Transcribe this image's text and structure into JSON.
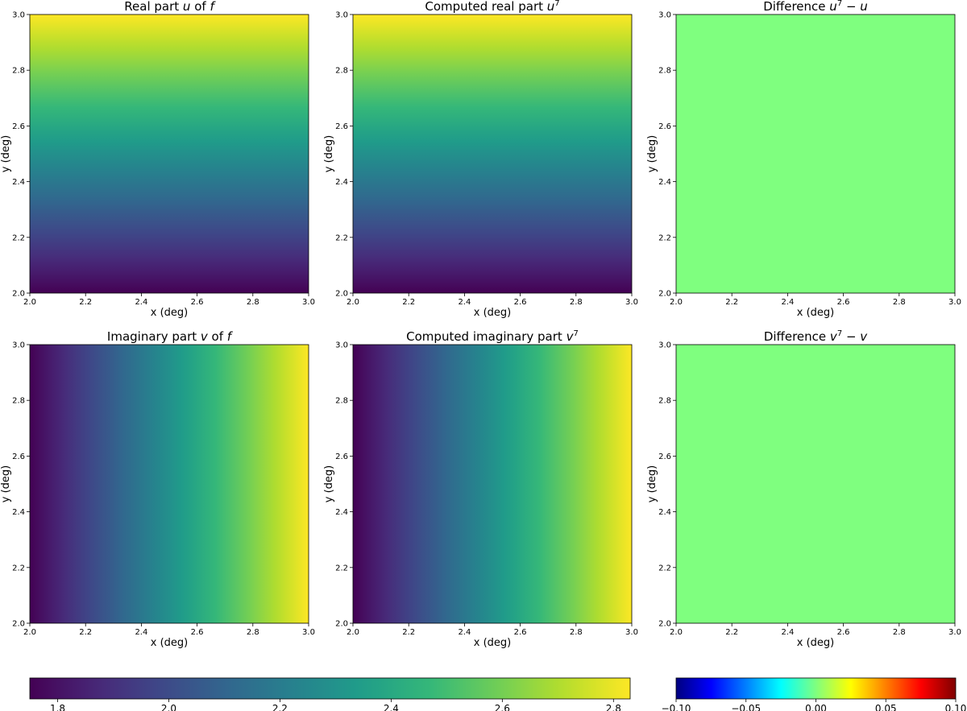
{
  "chart_data": [
    {
      "type": "heatmap",
      "title": "Real part u of f",
      "title_parts": [
        "Real part ",
        "u",
        " of ",
        "f"
      ],
      "xlabel": "x (deg)",
      "ylabel": "y (deg)",
      "xlim": [
        2.0,
        3.0
      ],
      "ylim": [
        2.0,
        3.0
      ],
      "xticks": [
        "2.0",
        "2.2",
        "2.4",
        "2.6",
        "2.8",
        "3.0"
      ],
      "yticks": [
        "2.0",
        "2.2",
        "2.4",
        "2.6",
        "2.8",
        "3.0"
      ],
      "colormap": "viridis",
      "clim": [
        1.75,
        2.83
      ],
      "gradient": "vertical",
      "value_range": [
        1.75,
        2.83
      ]
    },
    {
      "type": "heatmap",
      "title": "Computed real part u^7",
      "title_parts": [
        "Computed real part ",
        "u",
        "7"
      ],
      "xlabel": "x (deg)",
      "ylabel": "y (deg)",
      "xlim": [
        2.0,
        3.0
      ],
      "ylim": [
        2.0,
        3.0
      ],
      "xticks": [
        "2.0",
        "2.2",
        "2.4",
        "2.6",
        "2.8",
        "3.0"
      ],
      "yticks": [
        "2.0",
        "2.2",
        "2.4",
        "2.6",
        "2.8",
        "3.0"
      ],
      "colormap": "viridis",
      "clim": [
        1.75,
        2.83
      ],
      "gradient": "vertical",
      "value_range": [
        1.75,
        2.83
      ]
    },
    {
      "type": "heatmap",
      "title": "Difference u^7 − u",
      "title_parts": [
        "Difference ",
        "u",
        "7",
        " − ",
        "u"
      ],
      "xlabel": "x (deg)",
      "ylabel": "y (deg)",
      "xlim": [
        2.0,
        3.0
      ],
      "ylim": [
        2.0,
        3.0
      ],
      "xticks": [
        "2.0",
        "2.2",
        "2.4",
        "2.6",
        "2.8",
        "3.0"
      ],
      "yticks": [
        "2.0",
        "2.2",
        "2.4",
        "2.6",
        "2.8",
        "3.0"
      ],
      "colormap": "jet",
      "clim": [
        -0.1,
        0.1
      ],
      "gradient": "uniform",
      "value_range": [
        0.0,
        0.0
      ]
    },
    {
      "type": "heatmap",
      "title": "Imaginary part v of f",
      "title_parts": [
        "Imaginary part ",
        "v",
        " of ",
        "f"
      ],
      "xlabel": "x (deg)",
      "ylabel": "y (deg)",
      "xlim": [
        2.0,
        3.0
      ],
      "ylim": [
        2.0,
        3.0
      ],
      "xticks": [
        "2.0",
        "2.2",
        "2.4",
        "2.6",
        "2.8",
        "3.0"
      ],
      "yticks": [
        "2.0",
        "2.2",
        "2.4",
        "2.6",
        "2.8",
        "3.0"
      ],
      "colormap": "viridis",
      "clim": [
        1.75,
        2.83
      ],
      "gradient": "horizontal",
      "value_range": [
        1.75,
        2.83
      ]
    },
    {
      "type": "heatmap",
      "title": "Computed imaginary part v^7",
      "title_parts": [
        "Computed imaginary part ",
        "v",
        "7"
      ],
      "xlabel": "x (deg)",
      "ylabel": "y (deg)",
      "xlim": [
        2.0,
        3.0
      ],
      "ylim": [
        2.0,
        3.0
      ],
      "xticks": [
        "2.0",
        "2.2",
        "2.4",
        "2.6",
        "2.8",
        "3.0"
      ],
      "yticks": [
        "2.0",
        "2.2",
        "2.4",
        "2.6",
        "2.8",
        "3.0"
      ],
      "colormap": "viridis",
      "clim": [
        1.75,
        2.83
      ],
      "gradient": "horizontal",
      "value_range": [
        1.75,
        2.83
      ]
    },
    {
      "type": "heatmap",
      "title": "Difference v^7 − v",
      "title_parts": [
        "Difference ",
        "v",
        "7",
        " − ",
        "v"
      ],
      "xlabel": "x (deg)",
      "ylabel": "y (deg)",
      "xlim": [
        2.0,
        3.0
      ],
      "ylim": [
        2.0,
        3.0
      ],
      "xticks": [
        "2.0",
        "2.2",
        "2.4",
        "2.6",
        "2.8",
        "3.0"
      ],
      "yticks": [
        "2.0",
        "2.2",
        "2.4",
        "2.6",
        "2.8",
        "3.0"
      ],
      "colormap": "jet",
      "clim": [
        -0.1,
        0.1
      ],
      "gradient": "uniform",
      "value_range": [
        0.0,
        0.0
      ]
    }
  ],
  "colorbars": [
    {
      "colormap": "viridis",
      "range": [
        1.75,
        2.83
      ],
      "ticks": [
        1.8,
        2.0,
        2.2,
        2.4,
        2.6,
        2.8
      ],
      "tick_labels": [
        "1.8",
        "2.0",
        "2.2",
        "2.4",
        "2.6",
        "2.8"
      ]
    },
    {
      "colormap": "jet",
      "range": [
        -0.1,
        0.1
      ],
      "ticks": [
        -0.1,
        -0.05,
        0.0,
        0.05,
        0.1
      ],
      "tick_labels": [
        "−0.10",
        "−0.05",
        "0.00",
        "0.05",
        "0.10"
      ]
    }
  ],
  "colormaps": {
    "viridis": [
      "#440154",
      "#482878",
      "#3e4989",
      "#31688e",
      "#26828e",
      "#1f9e89",
      "#35b779",
      "#6ece58",
      "#b5de2b",
      "#fde725"
    ],
    "jet": [
      "#00007f",
      "#0000ff",
      "#007fff",
      "#00ffff",
      "#7fff7f",
      "#ffff00",
      "#ff7f00",
      "#ff0000",
      "#7f0000"
    ]
  }
}
